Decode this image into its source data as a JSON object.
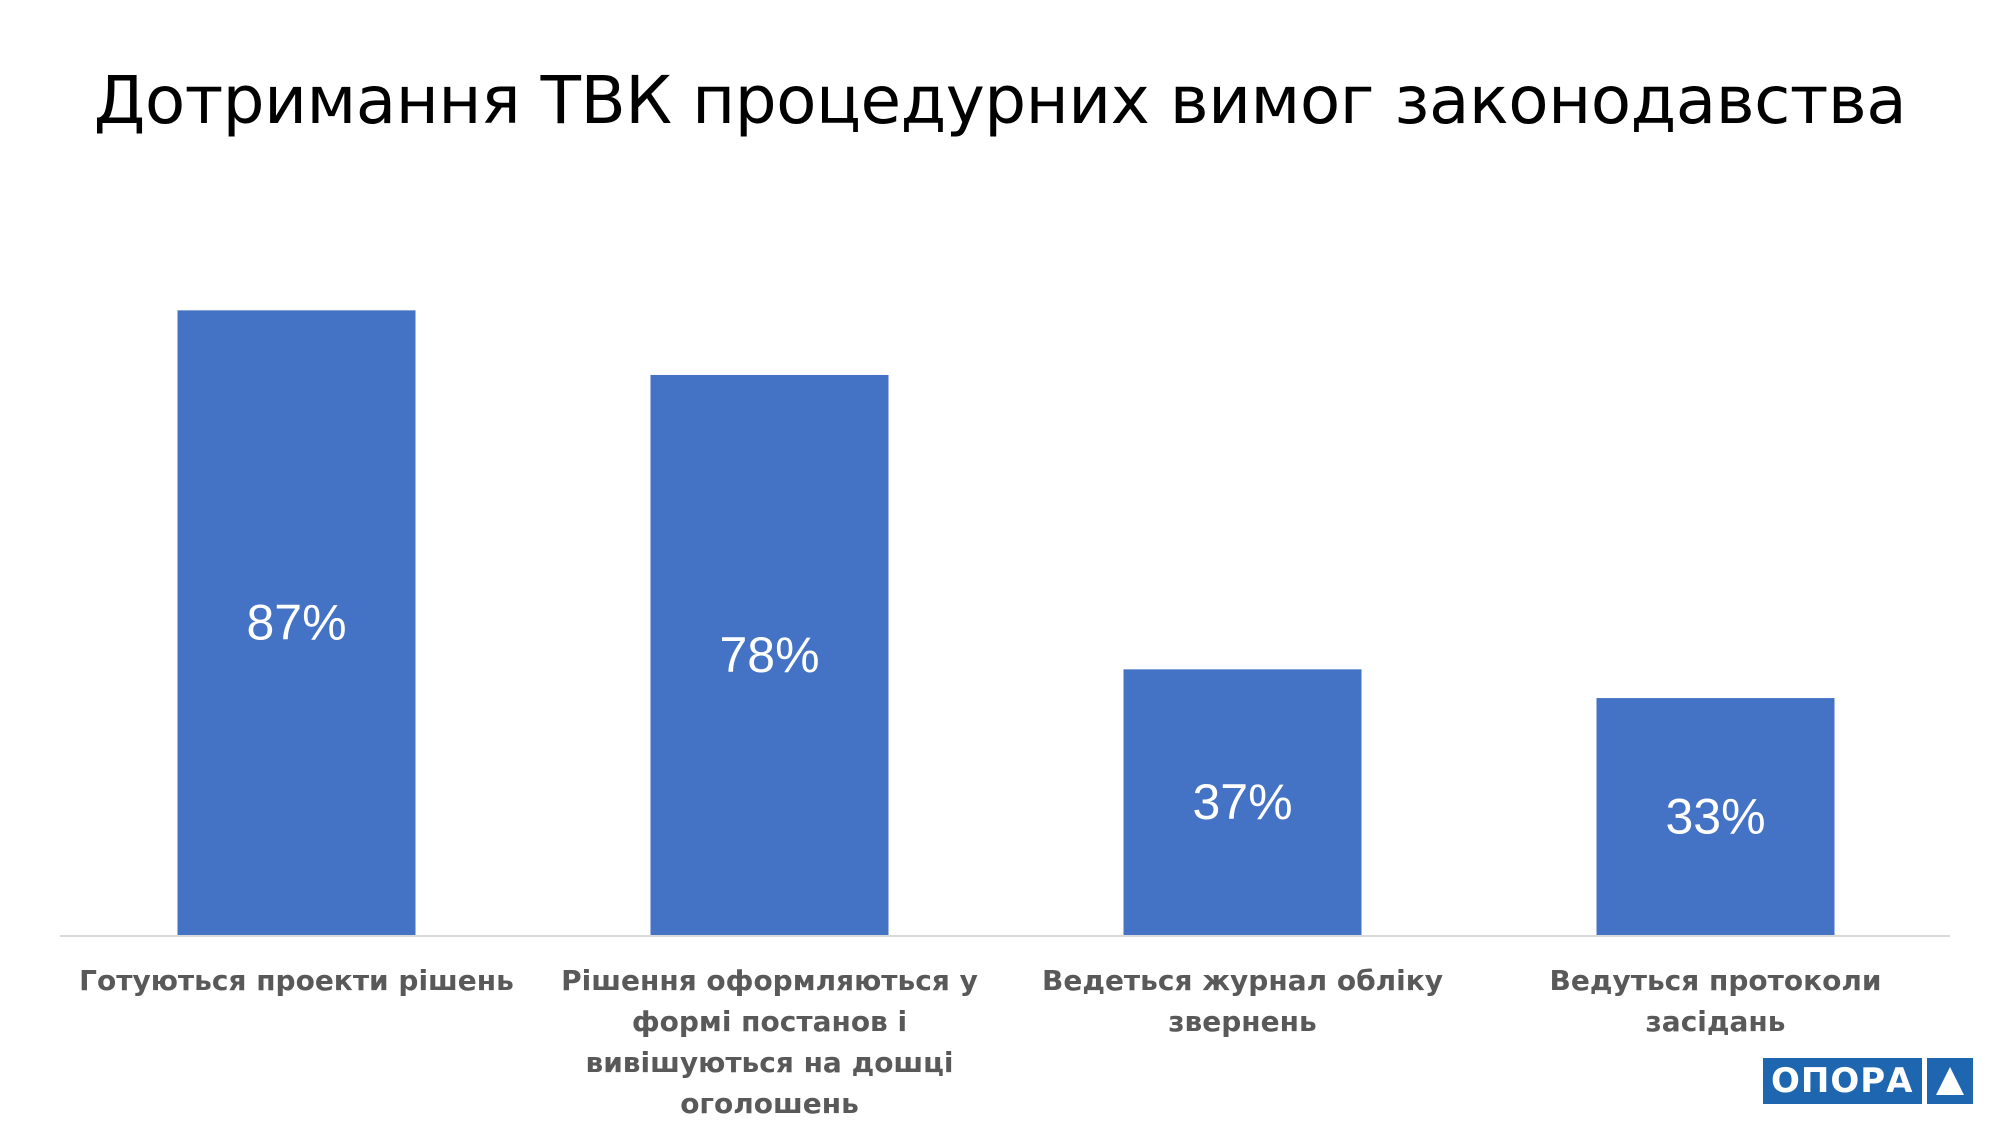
{
  "chart_data": {
    "type": "bar",
    "title": "Дотримання ТВК процедурних вимог законодавства",
    "categories": [
      "Готуються проекти рішень",
      "Рішення оформляються у формі постанов і вивішуються на дошці оголошень",
      "Ведеться журнал обліку звернень",
      "Ведуться протоколи засідань"
    ],
    "values": [
      87,
      78,
      37,
      33
    ],
    "data_labels": [
      "87%",
      "78%",
      "37%",
      "33%"
    ],
    "unit": "%",
    "ylim": [
      0,
      100
    ],
    "grid": false,
    "legend": "none",
    "bar_color": "#4472c4",
    "label_color": "#ffffff"
  },
  "logo": {
    "text": "ОПОРА"
  }
}
